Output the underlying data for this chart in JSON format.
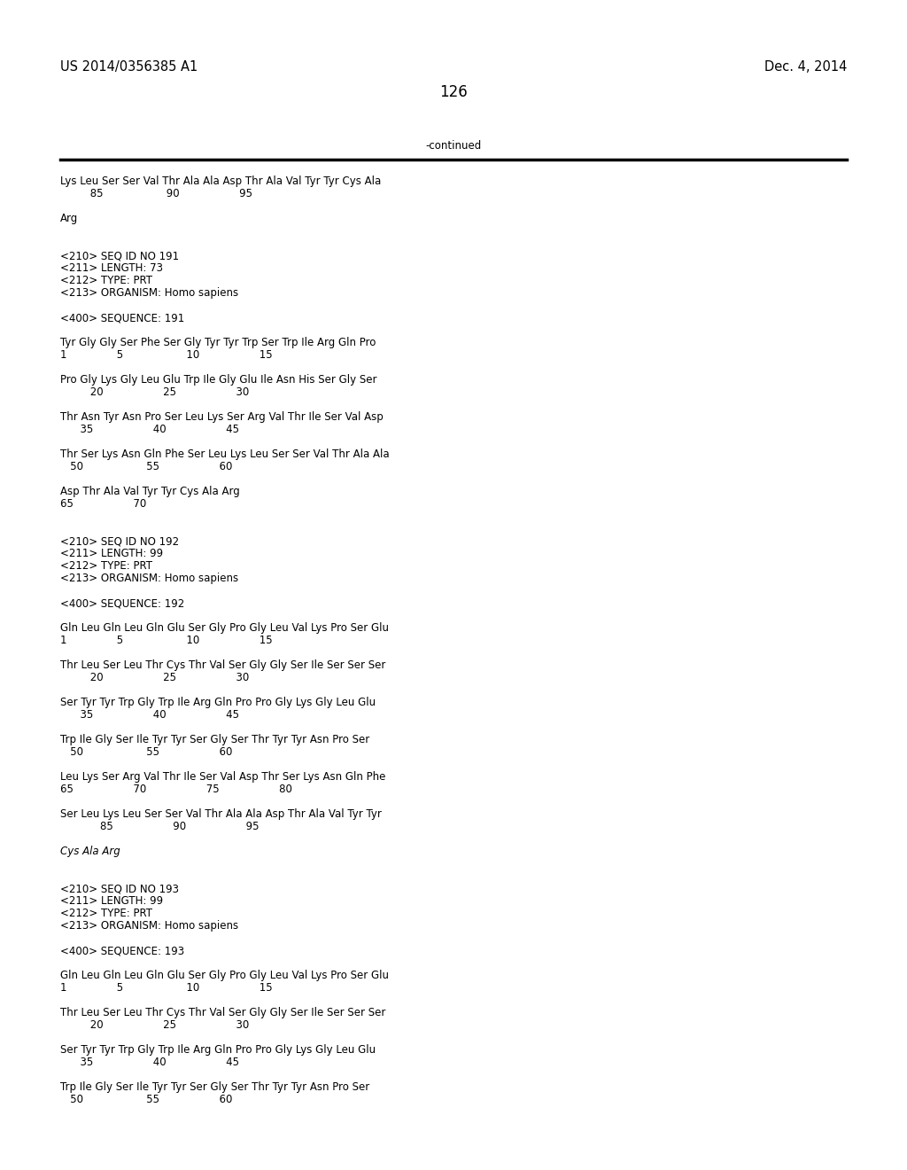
{
  "bg_color": "#ffffff",
  "header_left": "US 2014/0356385 A1",
  "header_right": "Dec. 4, 2014",
  "page_number": "126",
  "continued_text": "-continued",
  "font_size_header": 10.5,
  "font_size_body": 8.5,
  "font_size_page": 12,
  "content_lines": [
    {
      "text": "Lys Leu Ser Ser Val Thr Ala Ala Asp Thr Ala Val Tyr Tyr Cys Ala",
      "style": "normal"
    },
    {
      "text": "         85                   90                  95",
      "style": "normal"
    },
    {
      "text": "",
      "style": "normal"
    },
    {
      "text": "Arg",
      "style": "normal"
    },
    {
      "text": "",
      "style": "normal"
    },
    {
      "text": "",
      "style": "normal"
    },
    {
      "text": "<210> SEQ ID NO 191",
      "style": "normal"
    },
    {
      "text": "<211> LENGTH: 73",
      "style": "normal"
    },
    {
      "text": "<212> TYPE: PRT",
      "style": "normal"
    },
    {
      "text": "<213> ORGANISM: Homo sapiens",
      "style": "normal"
    },
    {
      "text": "",
      "style": "normal"
    },
    {
      "text": "<400> SEQUENCE: 191",
      "style": "normal"
    },
    {
      "text": "",
      "style": "normal"
    },
    {
      "text": "Tyr Gly Gly Ser Phe Ser Gly Tyr Tyr Trp Ser Trp Ile Arg Gln Pro",
      "style": "normal"
    },
    {
      "text": "1               5                   10                  15",
      "style": "normal"
    },
    {
      "text": "",
      "style": "normal"
    },
    {
      "text": "Pro Gly Lys Gly Leu Glu Trp Ile Gly Glu Ile Asn His Ser Gly Ser",
      "style": "normal"
    },
    {
      "text": "         20                  25                  30",
      "style": "normal"
    },
    {
      "text": "",
      "style": "normal"
    },
    {
      "text": "Thr Asn Tyr Asn Pro Ser Leu Lys Ser Arg Val Thr Ile Ser Val Asp",
      "style": "normal"
    },
    {
      "text": "      35                  40                  45",
      "style": "normal"
    },
    {
      "text": "",
      "style": "normal"
    },
    {
      "text": "Thr Ser Lys Asn Gln Phe Ser Leu Lys Leu Ser Ser Val Thr Ala Ala",
      "style": "normal"
    },
    {
      "text": "   50                   55                  60",
      "style": "normal"
    },
    {
      "text": "",
      "style": "normal"
    },
    {
      "text": "Asp Thr Ala Val Tyr Tyr Cys Ala Arg",
      "style": "normal"
    },
    {
      "text": "65                  70",
      "style": "normal"
    },
    {
      "text": "",
      "style": "normal"
    },
    {
      "text": "",
      "style": "normal"
    },
    {
      "text": "<210> SEQ ID NO 192",
      "style": "normal"
    },
    {
      "text": "<211> LENGTH: 99",
      "style": "normal"
    },
    {
      "text": "<212> TYPE: PRT",
      "style": "normal"
    },
    {
      "text": "<213> ORGANISM: Homo sapiens",
      "style": "normal"
    },
    {
      "text": "",
      "style": "normal"
    },
    {
      "text": "<400> SEQUENCE: 192",
      "style": "normal"
    },
    {
      "text": "",
      "style": "normal"
    },
    {
      "text": "Gln Leu Gln Leu Gln Glu Ser Gly Pro Gly Leu Val Lys Pro Ser Glu",
      "style": "normal"
    },
    {
      "text": "1               5                   10                  15",
      "style": "normal"
    },
    {
      "text": "",
      "style": "normal"
    },
    {
      "text": "Thr Leu Ser Leu Thr Cys Thr Val Ser Gly Gly Ser Ile Ser Ser Ser",
      "style": "normal"
    },
    {
      "text": "         20                  25                  30",
      "style": "normal"
    },
    {
      "text": "",
      "style": "normal"
    },
    {
      "text": "Ser Tyr Tyr Trp Gly Trp Ile Arg Gln Pro Pro Gly Lys Gly Leu Glu",
      "style": "normal"
    },
    {
      "text": "      35                  40                  45",
      "style": "normal"
    },
    {
      "text": "",
      "style": "normal"
    },
    {
      "text": "Trp Ile Gly Ser Ile Tyr Tyr Ser Gly Ser Thr Tyr Tyr Asn Pro Ser",
      "style": "normal"
    },
    {
      "text": "   50                   55                  60",
      "style": "normal"
    },
    {
      "text": "",
      "style": "normal"
    },
    {
      "text": "Leu Lys Ser Arg Val Thr Ile Ser Val Asp Thr Ser Lys Asn Gln Phe",
      "style": "normal"
    },
    {
      "text": "65                  70                  75                  80",
      "style": "normal"
    },
    {
      "text": "",
      "style": "normal"
    },
    {
      "text": "Ser Leu Lys Leu Ser Ser Val Thr Ala Ala Asp Thr Ala Val Tyr Tyr",
      "style": "normal"
    },
    {
      "text": "            85                  90                  95",
      "style": "normal"
    },
    {
      "text": "",
      "style": "normal"
    },
    {
      "text": "Cys Ala Arg",
      "style": "italic"
    },
    {
      "text": "",
      "style": "normal"
    },
    {
      "text": "",
      "style": "normal"
    },
    {
      "text": "<210> SEQ ID NO 193",
      "style": "normal"
    },
    {
      "text": "<211> LENGTH: 99",
      "style": "normal"
    },
    {
      "text": "<212> TYPE: PRT",
      "style": "normal"
    },
    {
      "text": "<213> ORGANISM: Homo sapiens",
      "style": "normal"
    },
    {
      "text": "",
      "style": "normal"
    },
    {
      "text": "<400> SEQUENCE: 193",
      "style": "normal"
    },
    {
      "text": "",
      "style": "normal"
    },
    {
      "text": "Gln Leu Gln Leu Gln Glu Ser Gly Pro Gly Leu Val Lys Pro Ser Glu",
      "style": "normal"
    },
    {
      "text": "1               5                   10                  15",
      "style": "normal"
    },
    {
      "text": "",
      "style": "normal"
    },
    {
      "text": "Thr Leu Ser Leu Thr Cys Thr Val Ser Gly Gly Ser Ile Ser Ser Ser",
      "style": "normal"
    },
    {
      "text": "         20                  25                  30",
      "style": "normal"
    },
    {
      "text": "",
      "style": "normal"
    },
    {
      "text": "Ser Tyr Tyr Trp Gly Trp Ile Arg Gln Pro Pro Gly Lys Gly Leu Glu",
      "style": "normal"
    },
    {
      "text": "      35                  40                  45",
      "style": "normal"
    },
    {
      "text": "",
      "style": "normal"
    },
    {
      "text": "Trp Ile Gly Ser Ile Tyr Tyr Ser Gly Ser Thr Tyr Tyr Asn Pro Ser",
      "style": "normal"
    },
    {
      "text": "   50                   55                  60",
      "style": "normal"
    }
  ]
}
